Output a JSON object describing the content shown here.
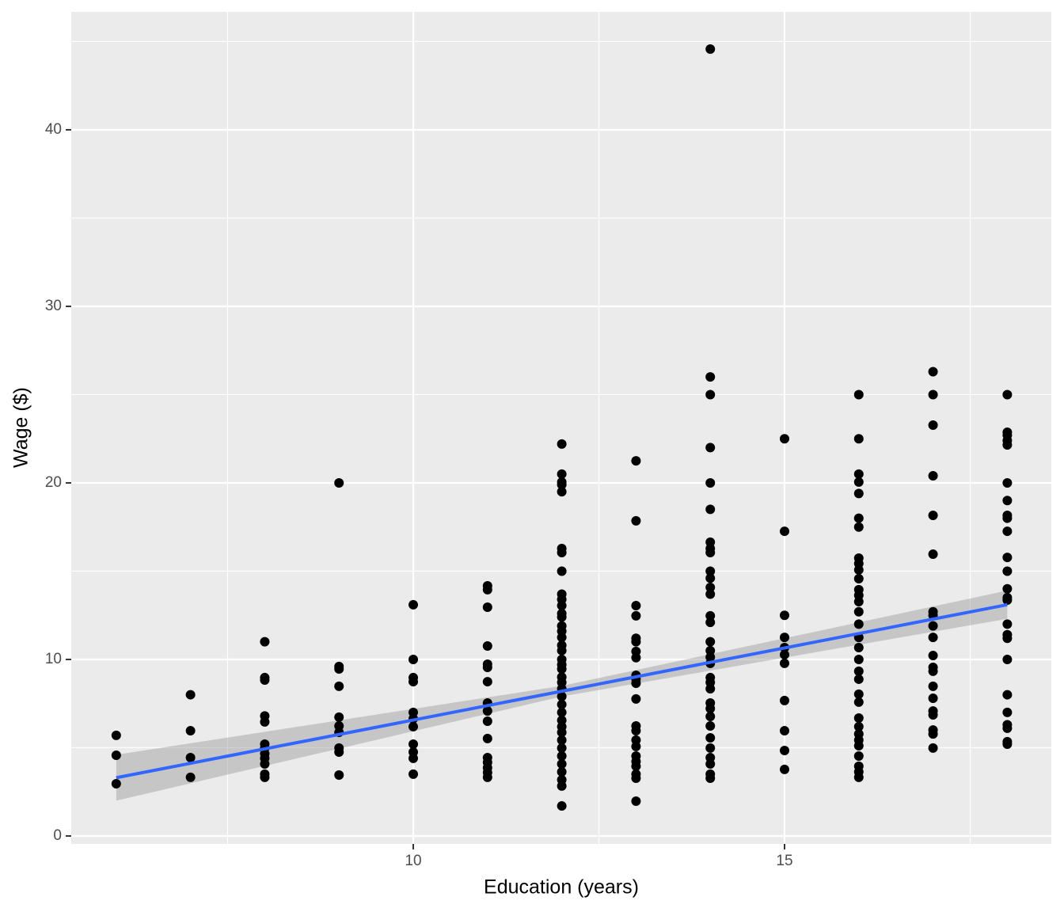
{
  "chart_data": {
    "type": "scatter",
    "x_label": "Education (years)",
    "y_label": "Wage ($)",
    "xlim": [
      5.394,
      18.593
    ],
    "ylim": [
      -0.45,
      46.68
    ],
    "xticks": [
      10,
      15
    ],
    "yticks": [
      0,
      10,
      20,
      30,
      40
    ],
    "grid": true,
    "color": "#000000",
    "x": [
      6,
      6,
      6,
      7,
      7,
      7,
      7,
      8,
      8,
      8,
      8,
      8,
      8,
      8,
      8,
      8,
      8,
      8,
      8,
      9,
      9,
      9,
      9,
      9,
      9,
      9,
      9,
      9,
      9,
      10,
      10,
      10,
      10,
      10,
      10,
      10,
      10,
      10,
      10,
      10,
      11,
      11,
      11,
      11,
      11,
      11,
      11,
      11,
      11,
      11,
      11,
      11,
      11,
      11,
      11,
      11,
      12,
      12,
      12,
      12,
      12,
      12,
      12,
      12,
      12,
      12,
      12,
      12,
      12,
      12,
      12,
      12,
      12,
      12,
      12,
      12,
      12,
      12,
      12,
      12,
      12,
      12,
      12,
      12,
      12,
      12,
      12,
      12,
      12,
      12,
      12,
      12,
      12,
      12,
      13,
      13,
      13,
      13,
      13,
      13,
      13,
      13,
      13,
      13,
      13,
      13,
      13,
      13,
      13,
      13,
      13,
      13,
      13,
      13,
      13,
      13,
      14,
      14,
      14,
      14,
      14,
      14,
      14,
      14,
      14,
      14,
      14,
      14,
      14,
      14,
      14,
      14,
      14,
      14,
      14,
      14,
      14,
      14,
      14,
      14,
      14,
      14,
      14,
      14,
      14,
      14,
      14,
      14,
      15,
      15,
      15,
      15,
      15,
      15,
      15,
      15,
      15,
      15,
      15,
      16,
      16,
      16,
      16,
      16,
      16,
      16,
      16,
      16,
      16,
      16,
      16,
      16,
      16,
      16,
      16,
      16,
      16,
      16,
      16,
      16,
      16,
      16,
      16,
      16,
      16,
      16,
      16,
      16,
      16,
      16,
      16,
      17,
      17,
      17,
      17,
      17,
      17,
      17,
      17,
      17,
      17,
      17,
      17,
      17,
      17,
      17,
      17,
      17,
      17,
      17,
      17,
      18,
      18,
      18,
      18,
      18,
      18,
      18,
      18,
      18,
      18,
      18,
      18,
      18,
      18,
      18,
      18,
      18,
      18,
      18,
      18,
      18,
      18,
      18,
      18,
      18
    ],
    "values": [
      5.7,
      4.57,
      2.96,
      8.0,
      5.96,
      4.44,
      3.32,
      11.0,
      8.97,
      8.83,
      6.8,
      6.46,
      5.2,
      4.98,
      4.66,
      4.4,
      4.08,
      3.5,
      3.32,
      20.0,
      9.6,
      9.46,
      8.48,
      6.73,
      6.23,
      5.87,
      4.98,
      4.75,
      3.45,
      13.1,
      10.0,
      8.97,
      8.74,
      7.0,
      6.64,
      6.19,
      5.2,
      4.75,
      4.4,
      3.5,
      14.17,
      13.95,
      12.96,
      10.76,
      9.73,
      9.55,
      8.74,
      7.53,
      7.08,
      6.5,
      5.52,
      4.44,
      4.17,
      3.86,
      3.59,
      3.32,
      22.2,
      20.5,
      20.05,
      19.9,
      19.5,
      16.28,
      16.05,
      15.0,
      13.7,
      13.4,
      13.05,
      12.6,
      12.4,
      11.9,
      11.6,
      11.25,
      10.8,
      10.5,
      10.0,
      9.7,
      9.46,
      9.0,
      8.7,
      8.34,
      7.9,
      7.45,
      7.0,
      6.55,
      6.19,
      5.87,
      5.43,
      4.98,
      4.53,
      4.08,
      3.63,
      3.18,
      2.83,
      1.7,
      21.25,
      17.85,
      13.05,
      12.47,
      11.2,
      11.0,
      10.45,
      10.1,
      9.1,
      8.88,
      8.65,
      7.76,
      6.23,
      5.96,
      5.43,
      5.07,
      4.53,
      4.22,
      3.95,
      3.5,
      3.27,
      1.97,
      44.57,
      26.0,
      25.0,
      22.0,
      20.0,
      18.5,
      16.64,
      16.28,
      16.05,
      15.0,
      14.6,
      14.08,
      13.7,
      12.47,
      12.1,
      11.0,
      10.5,
      10.13,
      9.78,
      8.97,
      8.7,
      8.34,
      7.53,
      7.22,
      6.77,
      6.23,
      5.56,
      4.98,
      4.44,
      4.08,
      3.5,
      3.27,
      22.5,
      17.26,
      12.5,
      11.25,
      10.67,
      10.27,
      9.78,
      7.67,
      5.96,
      4.84,
      3.77,
      25.0,
      22.5,
      20.5,
      20.05,
      19.4,
      18.0,
      17.5,
      15.74,
      15.43,
      15.07,
      14.57,
      13.95,
      13.63,
      13.27,
      12.7,
      12.0,
      11.25,
      10.67,
      10.0,
      9.33,
      8.88,
      8.03,
      7.58,
      6.68,
      6.19,
      5.78,
      5.43,
      5.11,
      4.53,
      3.95,
      3.63,
      3.32,
      26.3,
      25.0,
      23.27,
      20.4,
      18.16,
      15.96,
      12.7,
      12.5,
      11.9,
      11.25,
      10.22,
      9.55,
      9.33,
      8.48,
      7.8,
      7.08,
      6.86,
      6.0,
      5.78,
      4.98,
      25.0,
      22.87,
      22.7,
      22.4,
      22.15,
      20.0,
      19.0,
      18.16,
      18.0,
      17.26,
      15.78,
      15.0,
      14.0,
      13.5,
      13.36,
      12.0,
      11.4,
      11.2,
      10.0,
      8.0,
      7.0,
      6.3,
      6.1,
      5.34,
      5.2
    ],
    "fit": {
      "color": "#3366ff",
      "band_color": "#999999",
      "x": [
        6,
        12,
        18
      ],
      "y": [
        3.3,
        8.2,
        13.1
      ],
      "lower": [
        2.0,
        7.9,
        12.3
      ],
      "upper": [
        4.6,
        8.5,
        13.9
      ]
    }
  }
}
